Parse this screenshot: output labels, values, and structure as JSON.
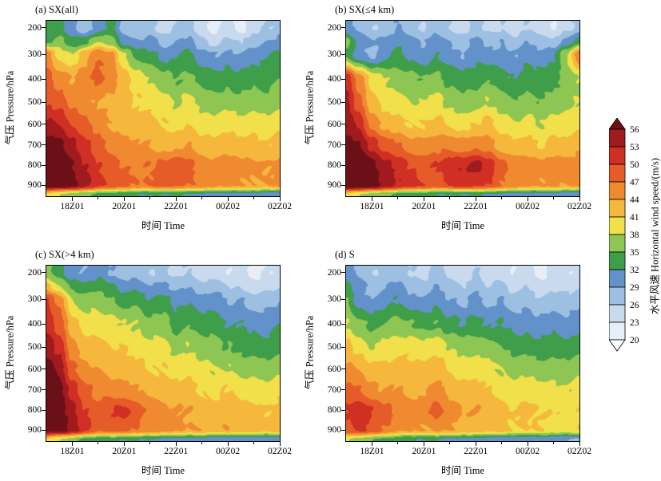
{
  "axes": {
    "xlabel": "时间 Time",
    "ylabel": "气压 Pressure/hPa",
    "x_start": 17,
    "x_end": 26,
    "x_step": 0.5,
    "p_top": 175,
    "p_bottom": 958,
    "pressure_levels": [
      200,
      250,
      300,
      400,
      500,
      600,
      700,
      800,
      900,
      950
    ],
    "x_ticks": [
      {
        "hour": 18,
        "label": "18Z01"
      },
      {
        "hour": 20,
        "label": "20Z01"
      },
      {
        "hour": 22,
        "label": "22Z01"
      },
      {
        "hour": 24,
        "label": "00Z02"
      },
      {
        "hour": 26,
        "label": "02Z02"
      }
    ],
    "x_minor_ticks": [
      19,
      21,
      23,
      25
    ],
    "y_ticks": [
      "200",
      "300",
      "400",
      "500",
      "600",
      "700",
      "800",
      "900"
    ]
  },
  "colorbar": {
    "label": "水平风速 Horizontal wind speed/(m/s)",
    "levels": [
      20,
      23,
      26,
      29,
      32,
      35,
      38,
      41,
      44,
      47,
      50,
      53,
      56
    ],
    "colors_low_to_high": [
      "#ffffff",
      "#e7eef8",
      "#c9daee",
      "#9dc0e2",
      "#6391c9",
      "#3f9e4a",
      "#8dc653",
      "#f1e04a",
      "#f5b83d",
      "#f08a30",
      "#e55c28",
      "#d02f24",
      "#a01a1e",
      "#6b1016"
    ]
  },
  "chart_data": [
    {
      "panel": "a",
      "type": "heatmap",
      "title": "(a) SX(all)",
      "xlabel": "时间 Time",
      "ylabel": "气压 Pressure/hPa",
      "units": "m/s",
      "values": [
        [
          32,
          33,
          30,
          27,
          30,
          33,
          28,
          26,
          27,
          25,
          26,
          27,
          24,
          22,
          24,
          22,
          25,
          26,
          27
        ],
        [
          34,
          36,
          33,
          34,
          38,
          36,
          31,
          29,
          30,
          28,
          29,
          30,
          27,
          25,
          27,
          26,
          28,
          29,
          30
        ],
        [
          46,
          40,
          38,
          43,
          47,
          45,
          38,
          34,
          33,
          31,
          32,
          33,
          30,
          29,
          30,
          29,
          31,
          32,
          33
        ],
        [
          48,
          46,
          44,
          46,
          48,
          46,
          42,
          40,
          38,
          36,
          35,
          36,
          34,
          33,
          34,
          33,
          34,
          34,
          35
        ],
        [
          50,
          49,
          46,
          45,
          44,
          43,
          42,
          41,
          40,
          39,
          38,
          39,
          37,
          36,
          37,
          36,
          37,
          36,
          37
        ],
        [
          54,
          53,
          50,
          48,
          46,
          44,
          43,
          42,
          42,
          41,
          40,
          41,
          40,
          39,
          40,
          39,
          40,
          39,
          40
        ],
        [
          58,
          57,
          54,
          51,
          48,
          46,
          45,
          44,
          44,
          43,
          43,
          44,
          42,
          42,
          43,
          42,
          42,
          41,
          42
        ],
        [
          59,
          58,
          56,
          53,
          50,
          48,
          47,
          46,
          47,
          48,
          49,
          48,
          46,
          45,
          46,
          45,
          45,
          44,
          45
        ],
        [
          58,
          59,
          57,
          54,
          51,
          49,
          48,
          47,
          47,
          48,
          48,
          47,
          46,
          45,
          45,
          44,
          44,
          44,
          45
        ],
        [
          40,
          38,
          36,
          35,
          34,
          33,
          33,
          32,
          32,
          32,
          32,
          32,
          31,
          31,
          31,
          31,
          31,
          30,
          30
        ]
      ]
    },
    {
      "panel": "b",
      "type": "heatmap",
      "title": "(b) SX(≤4 km)",
      "xlabel": "时间 Time",
      "ylabel": "气压 Pressure/hPa",
      "units": "m/s",
      "values": [
        [
          30,
          28,
          26,
          27,
          29,
          27,
          26,
          28,
          26,
          25,
          27,
          25,
          26,
          24,
          26,
          24,
          23,
          25,
          27
        ],
        [
          36,
          31,
          29,
          30,
          31,
          30,
          29,
          31,
          29,
          28,
          30,
          28,
          29,
          27,
          29,
          28,
          27,
          30,
          34
        ],
        [
          34,
          30,
          28,
          31,
          33,
          31,
          30,
          32,
          30,
          29,
          31,
          30,
          30,
          29,
          31,
          30,
          32,
          38,
          47
        ],
        [
          52,
          46,
          40,
          38,
          37,
          36,
          35,
          36,
          34,
          33,
          34,
          35,
          33,
          32,
          34,
          33,
          34,
          36,
          38
        ],
        [
          54,
          48,
          42,
          40,
          39,
          38,
          38,
          39,
          37,
          36,
          37,
          38,
          36,
          35,
          36,
          35,
          36,
          37,
          38
        ],
        [
          56,
          52,
          46,
          43,
          42,
          41,
          41,
          42,
          41,
          40,
          41,
          42,
          40,
          38,
          39,
          38,
          39,
          39,
          40
        ],
        [
          57,
          56,
          52,
          49,
          47,
          45,
          45,
          46,
          46,
          45,
          46,
          45,
          43,
          42,
          42,
          41,
          42,
          42,
          43
        ],
        [
          58,
          59,
          57,
          54,
          52,
          50,
          49,
          50,
          52,
          53,
          54,
          52,
          48,
          46,
          46,
          45,
          46,
          45,
          46
        ],
        [
          59,
          60,
          58,
          55,
          53,
          51,
          50,
          49,
          50,
          51,
          51,
          50,
          47,
          46,
          45,
          44,
          45,
          44,
          45
        ],
        [
          40,
          38,
          36,
          35,
          34,
          33,
          33,
          32,
          32,
          32,
          32,
          32,
          31,
          31,
          31,
          31,
          31,
          30,
          30
        ]
      ]
    },
    {
      "panel": "c",
      "type": "heatmap",
      "title": "(c) SX(>4 km)",
      "xlabel": "时间 Time",
      "ylabel": "气压 Pressure/hPa",
      "units": "m/s",
      "values": [
        [
          36,
          33,
          30,
          29,
          31,
          29,
          27,
          28,
          26,
          27,
          25,
          26,
          24,
          25,
          23,
          24,
          22,
          23,
          24
        ],
        [
          42,
          38,
          34,
          33,
          34,
          32,
          31,
          31,
          29,
          30,
          28,
          29,
          27,
          28,
          26,
          26,
          24,
          25,
          26
        ],
        [
          50,
          46,
          38,
          36,
          37,
          35,
          34,
          34,
          32,
          33,
          31,
          32,
          30,
          31,
          29,
          29,
          27,
          28,
          29
        ],
        [
          52,
          49,
          42,
          40,
          40,
          39,
          38,
          38,
          36,
          36,
          34,
          35,
          33,
          34,
          32,
          32,
          31,
          31,
          32
        ],
        [
          55,
          52,
          45,
          42,
          42,
          41,
          41,
          40,
          39,
          39,
          37,
          38,
          36,
          36,
          35,
          34,
          34,
          33,
          34
        ],
        [
          58,
          55,
          48,
          45,
          44,
          43,
          43,
          42,
          41,
          41,
          40,
          40,
          39,
          38,
          38,
          37,
          37,
          36,
          37
        ],
        [
          59,
          57,
          52,
          48,
          46,
          46,
          45,
          44,
          43,
          43,
          42,
          42,
          41,
          40,
          41,
          40,
          40,
          39,
          40
        ],
        [
          58,
          58,
          54,
          50,
          48,
          50,
          51,
          48,
          46,
          45,
          44,
          44,
          43,
          42,
          43,
          42,
          42,
          41,
          42
        ],
        [
          57,
          58,
          55,
          51,
          48,
          48,
          48,
          47,
          46,
          45,
          45,
          44,
          44,
          43,
          44,
          43,
          43,
          42,
          43
        ],
        [
          40,
          38,
          36,
          34,
          33,
          33,
          32,
          32,
          32,
          31,
          31,
          31,
          31,
          30,
          30,
          30,
          30,
          30,
          30
        ]
      ]
    },
    {
      "panel": "d",
      "type": "heatmap",
      "title": "(d) S",
      "xlabel": "时间 Time",
      "ylabel": "气压 Pressure/hPa",
      "units": "m/s",
      "values": [
        [
          31,
          28,
          26,
          27,
          28,
          26,
          25,
          27,
          25,
          24,
          26,
          24,
          25,
          23,
          24,
          22,
          24,
          23,
          24
        ],
        [
          33,
          30,
          28,
          29,
          30,
          28,
          27,
          29,
          27,
          26,
          28,
          26,
          27,
          25,
          26,
          24,
          26,
          25,
          26
        ],
        [
          35,
          30,
          29,
          31,
          32,
          30,
          29,
          31,
          29,
          28,
          30,
          28,
          29,
          27,
          28,
          26,
          27,
          27,
          28
        ],
        [
          38,
          36,
          34,
          35,
          36,
          35,
          34,
          35,
          33,
          32,
          33,
          32,
          32,
          31,
          31,
          30,
          31,
          30,
          31
        ],
        [
          42,
          40,
          38,
          39,
          40,
          40,
          39,
          40,
          38,
          37,
          37,
          36,
          35,
          34,
          34,
          33,
          34,
          33,
          34
        ],
        [
          45,
          44,
          42,
          42,
          42,
          42,
          42,
          43,
          41,
          40,
          40,
          39,
          38,
          37,
          37,
          36,
          36,
          36,
          37
        ],
        [
          48,
          47,
          45,
          44,
          44,
          43,
          44,
          45,
          43,
          42,
          42,
          41,
          40,
          39,
          40,
          39,
          39,
          38,
          39
        ],
        [
          50,
          52,
          50,
          48,
          46,
          45,
          46,
          48,
          45,
          44,
          44,
          43,
          42,
          41,
          42,
          41,
          41,
          40,
          41
        ],
        [
          49,
          51,
          49,
          47,
          45,
          44,
          44,
          45,
          44,
          43,
          43,
          42,
          42,
          41,
          41,
          41,
          40,
          40,
          41
        ],
        [
          38,
          37,
          35,
          34,
          33,
          32,
          32,
          32,
          31,
          31,
          31,
          31,
          30,
          30,
          30,
          30,
          30,
          29,
          29
        ]
      ]
    }
  ]
}
